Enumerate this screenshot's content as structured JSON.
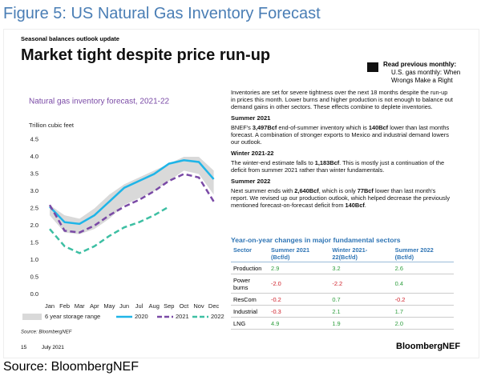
{
  "figure_title": "Figure 5: US Natural Gas Inventory Forecast",
  "header": {
    "kicker": "Seasonal balances outlook update",
    "title": "Market tight despite price run-up",
    "read_more": {
      "label": "Read previous monthly:",
      "link": "U.S. gas monthly: When Wrongs Make a Right"
    }
  },
  "chart_data": {
    "type": "line",
    "title": "Natural gas inventory forecast, 2021-22",
    "y_label": "Trillion cubic feet",
    "categories": [
      "Jan",
      "Feb",
      "Mar",
      "Apr",
      "May",
      "Jun",
      "Jul",
      "Aug",
      "Sep",
      "Oct",
      "Nov",
      "Dec"
    ],
    "ylim": [
      0,
      4.5
    ],
    "yticks": [
      {
        "value": 0,
        "label": "0.0"
      },
      0.5,
      {
        "value": 1,
        "label": "1.0"
      },
      1.5,
      {
        "value": 2,
        "label": "2.0"
      },
      2.5,
      {
        "value": 3,
        "label": "3.0"
      },
      3.5,
      {
        "value": 4,
        "label": "4.0"
      },
      4.5
    ],
    "grid": false,
    "band": {
      "name": "6 year storage range",
      "color": "#d9d9d9",
      "low": [
        2.3,
        1.8,
        1.75,
        1.9,
        2.2,
        2.6,
        2.8,
        3.0,
        3.3,
        3.6,
        3.5,
        2.9
      ],
      "high": [
        2.6,
        2.3,
        2.2,
        2.5,
        2.9,
        3.2,
        3.4,
        3.6,
        3.8,
        4.0,
        4.0,
        3.6
      ]
    },
    "series": [
      {
        "name": "2020",
        "color": "#1fb5e8",
        "dash": false,
        "values": [
          2.55,
          2.1,
          2.05,
          2.3,
          2.7,
          3.1,
          3.3,
          3.5,
          3.8,
          3.9,
          3.85,
          3.35
        ]
      },
      {
        "name": "2021",
        "color": "#7a4aa6",
        "dash": true,
        "values": [
          2.6,
          1.85,
          1.8,
          2.0,
          2.3,
          2.55,
          2.75,
          3.0,
          3.3,
          3.5,
          3.4,
          2.7
        ]
      },
      {
        "name": "2022",
        "color": "#3dbfa3",
        "dash": true,
        "values": [
          1.9,
          1.4,
          1.2,
          1.4,
          1.7,
          1.95,
          2.1,
          2.3,
          2.55,
          null,
          null,
          null
        ]
      }
    ],
    "source": "Source: BloombergNEF"
  },
  "body": [
    {
      "runs": [
        {
          "text": "Inventories are set for severe tightness over the next 18 months despite the run-up in prices this month. Lower burns and higher production is not enough to balance out demand gains in other sectors. These effects combine to deplete inventories."
        }
      ]
    },
    {
      "heading": "Summer 2021",
      "runs": [
        {
          "text": "BNEF's "
        },
        {
          "text": "3,497Bcf",
          "bold": true
        },
        {
          "text": " end-of-summer inventory which is "
        },
        {
          "text": "140Bcf",
          "bold": true
        },
        {
          "text": " lower than last months forecast. A combination of stronger exports to Mexico and industrial demand lowers our outlook."
        }
      ]
    },
    {
      "heading": "Winter 2021-22",
      "runs": [
        {
          "text": "The winter-end estimate falls to "
        },
        {
          "text": "1,183Bcf",
          "bold": true
        },
        {
          "text": ". This is mostly just a continuation of the deficit from summer 2021 rather than winter fundamentals."
        }
      ]
    },
    {
      "heading": "Summer 2022",
      "runs": [
        {
          "text": "Next summer ends with "
        },
        {
          "text": "2,640Bcf",
          "bold": true
        },
        {
          "text": ", which is only "
        },
        {
          "text": "77Bcf",
          "bold": true
        },
        {
          "text": " lower than last month's report. We revised up our production outlook, which helped decrease the previously mentioned forecast-on-forecast deficit from "
        },
        {
          "text": "140Bcf",
          "bold": true
        },
        {
          "text": "."
        }
      ]
    }
  ],
  "table": {
    "title": "Year-on-year changes in major fundamental sectors",
    "header": [
      "Sector",
      "Summer 2021 (Bcf/d)",
      "Winter 2021-22(Bcf/d)",
      "Summer 2022 (Bcf/d)"
    ],
    "rows": [
      [
        "Production",
        "2.9",
        "3.2",
        "2.6"
      ],
      [
        "Power burns",
        "-2.0",
        "-2.2",
        "0.4"
      ],
      [
        "ResCom",
        "-0.2",
        "0.7",
        "-0.2"
      ],
      [
        "Industrial",
        "-0.3",
        "2.1",
        "1.7"
      ],
      [
        "LNG",
        "4.9",
        "1.9",
        "2.0"
      ]
    ]
  },
  "footer": {
    "page": "15",
    "date": "July 2021",
    "brand": "BloombergNEF"
  },
  "source": "Source: BloombergNEF"
}
